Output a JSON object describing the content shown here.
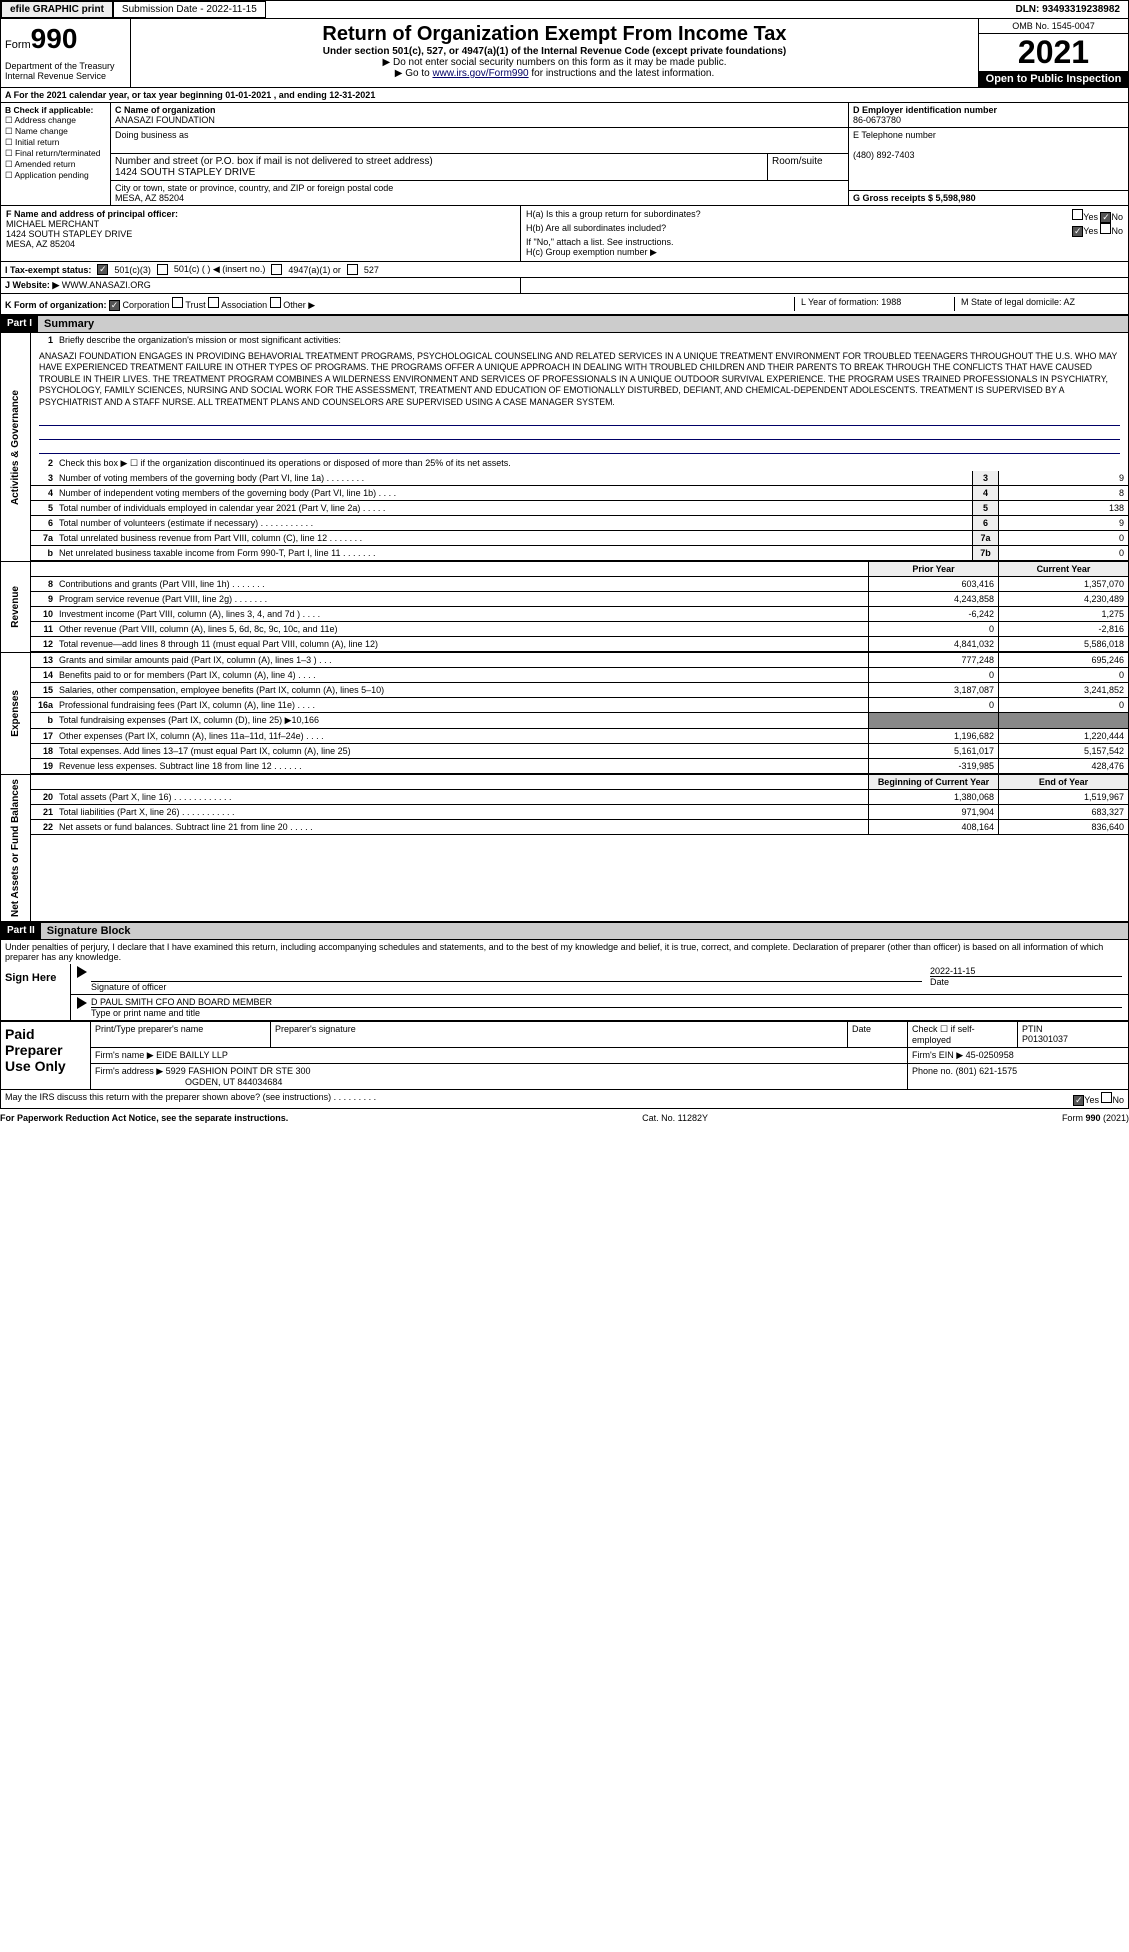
{
  "top": {
    "efile": "efile GRAPHIC print",
    "sub_label": "Submission Date - 2022-11-15",
    "dln": "DLN: 93493319238982"
  },
  "header": {
    "form_word": "Form",
    "form_num": "990",
    "dept": "Department of the Treasury",
    "irs": "Internal Revenue Service",
    "title": "Return of Organization Exempt From Income Tax",
    "subtitle": "Under section 501(c), 527, or 4947(a)(1) of the Internal Revenue Code (except private foundations)",
    "note1": "▶ Do not enter social security numbers on this form as it may be made public.",
    "note2_a": "▶ Go to ",
    "note2_link": "www.irs.gov/Form990",
    "note2_b": " for instructions and the latest information.",
    "omb": "OMB No. 1545-0047",
    "year": "2021",
    "open": "Open to Public Inspection"
  },
  "lineA": "A For the 2021 calendar year, or tax year beginning 01-01-2021   , and ending 12-31-2021",
  "boxB": {
    "hdr": "B Check if applicable:",
    "items": [
      "Address change",
      "Name change",
      "Initial return",
      "Final return/terminated",
      "Amended return",
      "Application pending"
    ]
  },
  "boxC": {
    "label": "C Name of organization",
    "name": "ANASAZI FOUNDATION",
    "dba": "Doing business as",
    "street_label": "Number and street (or P.O. box if mail is not delivered to street address)",
    "street": "1424 SOUTH STAPLEY DRIVE",
    "room_label": "Room/suite",
    "city_label": "City or town, state or province, country, and ZIP or foreign postal code",
    "city": "MESA, AZ  85204"
  },
  "boxD": {
    "label": "D Employer identification number",
    "val": "86-0673780"
  },
  "boxE": {
    "label": "E Telephone number",
    "val": "(480) 892-7403"
  },
  "boxG": {
    "label": "G Gross receipts $ 5,598,980"
  },
  "boxF": {
    "label": "F  Name and address of principal officer:",
    "name": "MICHAEL MERCHANT",
    "addr1": "1424 SOUTH STAPLEY DRIVE",
    "addr2": "MESA, AZ  85204"
  },
  "boxH": {
    "a": "H(a)  Is this a group return for subordinates?",
    "b": "H(b)  Are all subordinates included?",
    "b2": "If \"No,\" attach a list. See instructions.",
    "c": "H(c)  Group exemption number ▶",
    "yes": "Yes",
    "no": "No"
  },
  "rowI": {
    "label": "I   Tax-exempt status:",
    "o1": "501(c)(3)",
    "o2": "501(c) (   ) ◀ (insert no.)",
    "o3": "4947(a)(1) or",
    "o4": "527"
  },
  "rowJ": {
    "label": "J   Website: ▶",
    "val": "WWW.ANASAZI.ORG"
  },
  "rowK": {
    "label": "K Form of organization:",
    "o1": "Corporation",
    "o2": "Trust",
    "o3": "Association",
    "o4": "Other ▶",
    "L": "L Year of formation: 1988",
    "M": "M State of legal domicile: AZ"
  },
  "part1": {
    "hdr": "Part I",
    "title": "Summary",
    "side_gov": "Activities & Governance",
    "side_rev": "Revenue",
    "side_exp": "Expenses",
    "side_net": "Net Assets or Fund Balances",
    "l1": "Briefly describe the organization's mission or most significant activities:",
    "mission": "ANASAZI FOUNDATION ENGAGES IN PROVIDING BEHAVORIAL TREATMENT PROGRAMS, PSYCHOLOGICAL COUNSELING AND RELATED SERVICES IN A UNIQUE TREATMENT ENVIRONMENT FOR TROUBLED TEENAGERS THROUGHOUT THE U.S. WHO MAY HAVE EXPERIENCED TREATMENT FAILURE IN OTHER TYPES OF PROGRAMS. THE PROGRAMS OFFER A UNIQUE APPROACH IN DEALING WITH TROUBLED CHILDREN AND THEIR PARENTS TO BREAK THROUGH THE CONFLICTS THAT HAVE CAUSED TROUBLE IN THEIR LIVES. THE TREATMENT PROGRAM COMBINES A WILDERNESS ENVIRONMENT AND SERVICES OF PROFESSIONALS IN A UNIQUE OUTDOOR SURVIVAL EXPERIENCE. THE PROGRAM USES TRAINED PROFESSIONALS IN PSYCHIATRY, PSYCHOLOGY, FAMILY SCIENCES, NURSING AND SOCIAL WORK FOR THE ASSESSMENT, TREATMENT AND EDUCATION OF EMOTIONALLY DISTURBED, DEFIANT, AND CHEMICAL-DEPENDENT ADOLESCENTS. TREATMENT IS SUPERVISED BY A PSYCHIATRIST AND A STAFF NURSE. ALL TREATMENT PLANS AND COUNSELORS ARE SUPERVISED USING A CASE MANAGER SYSTEM.",
    "l2": "Check this box ▶ ☐ if the organization discontinued its operations or disposed of more than 25% of its net assets.",
    "gov_lines": [
      {
        "n": "3",
        "d": "Number of voting members of the governing body (Part VI, line 1a)  .    .    .    .    .    .    .    .",
        "box": "3",
        "v": "9"
      },
      {
        "n": "4",
        "d": "Number of independent voting members of the governing body (Part VI, line 1b)    .    .    .    .",
        "box": "4",
        "v": "8"
      },
      {
        "n": "5",
        "d": "Total number of individuals employed in calendar year 2021 (Part V, line 2a)    .    .    .    .    .",
        "box": "5",
        "v": "138"
      },
      {
        "n": "6",
        "d": "Total number of volunteers (estimate if necessary)   .    .    .    .    .    .    .    .    .    .    .",
        "box": "6",
        "v": "9"
      },
      {
        "n": "7a",
        "d": "Total unrelated business revenue from Part VIII, column (C), line 12   .    .    .    .    .    .    .",
        "box": "7a",
        "v": "0"
      },
      {
        "n": "b",
        "d": "Net unrelated business taxable income from Form 990-T, Part I, line 11  .    .    .    .    .    .    .",
        "box": "7b",
        "v": "0"
      }
    ],
    "col_prior": "Prior Year",
    "col_curr": "Current Year",
    "rev_lines": [
      {
        "n": "8",
        "d": "Contributions and grants (Part VIII, line 1h)   .    .    .    .    .    .    .",
        "p": "603,416",
        "c": "1,357,070"
      },
      {
        "n": "9",
        "d": "Program service revenue (Part VIII, line 2g)   .    .    .    .    .    .    .",
        "p": "4,243,858",
        "c": "4,230,489"
      },
      {
        "n": "10",
        "d": "Investment income (Part VIII, column (A), lines 3, 4, and 7d )   .    .    .    .",
        "p": "-6,242",
        "c": "1,275"
      },
      {
        "n": "11",
        "d": "Other revenue (Part VIII, column (A), lines 5, 6d, 8c, 9c, 10c, and 11e)",
        "p": "0",
        "c": "-2,816"
      },
      {
        "n": "12",
        "d": "Total revenue—add lines 8 through 11 (must equal Part VIII, column (A), line 12)",
        "p": "4,841,032",
        "c": "5,586,018"
      }
    ],
    "exp_lines": [
      {
        "n": "13",
        "d": "Grants and similar amounts paid (Part IX, column (A), lines 1–3 )  .    .    .",
        "p": "777,248",
        "c": "695,246"
      },
      {
        "n": "14",
        "d": "Benefits paid to or for members (Part IX, column (A), line 4)  .    .    .    .",
        "p": "0",
        "c": "0"
      },
      {
        "n": "15",
        "d": "Salaries, other compensation, employee benefits (Part IX, column (A), lines 5–10)",
        "p": "3,187,087",
        "c": "3,241,852"
      },
      {
        "n": "16a",
        "d": "Professional fundraising fees (Part IX, column (A), line 11e)   .    .    .    .",
        "p": "0",
        "c": "0"
      },
      {
        "n": "b",
        "d": "Total fundraising expenses (Part IX, column (D), line 25) ▶10,166",
        "p": "",
        "c": "",
        "grey": true
      },
      {
        "n": "17",
        "d": "Other expenses (Part IX, column (A), lines 11a–11d, 11f–24e)   .     .    .    .",
        "p": "1,196,682",
        "c": "1,220,444"
      },
      {
        "n": "18",
        "d": "Total expenses. Add lines 13–17 (must equal Part IX, column (A), line 25)",
        "p": "5,161,017",
        "c": "5,157,542"
      },
      {
        "n": "19",
        "d": "Revenue less expenses. Subtract line 18 from line 12   .    .    .    .    .    .",
        "p": "-319,985",
        "c": "428,476"
      }
    ],
    "col_begin": "Beginning of Current Year",
    "col_end": "End of Year",
    "net_lines": [
      {
        "n": "20",
        "d": "Total assets (Part X, line 16)  .    .    .    .    .    .    .    .    .    .    .    .",
        "p": "1,380,068",
        "c": "1,519,967"
      },
      {
        "n": "21",
        "d": "Total liabilities (Part X, line 26)   .    .    .    .    .    .    .    .    .    .    .",
        "p": "971,904",
        "c": "683,327"
      },
      {
        "n": "22",
        "d": "Net assets or fund balances. Subtract line 21 from line 20  .    .    .    .    .",
        "p": "408,164",
        "c": "836,640"
      }
    ]
  },
  "part2": {
    "hdr": "Part II",
    "title": "Signature Block",
    "decl": "Under penalties of perjury, I declare that I have examined this return, including accompanying schedules and statements, and to the best of my knowledge and belief, it is true, correct, and complete. Declaration of preparer (other than officer) is based on all information of which preparer has any knowledge.",
    "sign_here": "Sign Here",
    "sig_officer": "Signature of officer",
    "date_label": "Date",
    "date_val": "2022-11-15",
    "name_title": "D PAUL SMITH  CFO AND BOARD MEMBER",
    "type_label": "Type or print name and title"
  },
  "paid": {
    "label": "Paid Preparer Use Only",
    "h1": "Print/Type preparer's name",
    "h2": "Preparer's signature",
    "h3": "Date",
    "h4": "Check ☐ if self-employed",
    "h5": "PTIN",
    "ptin": "P01301037",
    "firm_name_l": "Firm's name    ▶",
    "firm_name": "EIDE BAILLY LLP",
    "firm_ein_l": "Firm's EIN ▶",
    "firm_ein": "45-0250958",
    "firm_addr_l": "Firm's address ▶",
    "firm_addr1": "5929 FASHION POINT DR STE 300",
    "firm_addr2": "OGDEN, UT  844034684",
    "phone_l": "Phone no.",
    "phone": "(801) 621-1575"
  },
  "discuss": "May the IRS discuss this return with the preparer shown above? (see instructions)    .    .    .    .    .    .    .    .    .",
  "footer": {
    "f1": "For Paperwork Reduction Act Notice, see the separate instructions.",
    "f2": "Cat. No. 11282Y",
    "f3": "Form 990 (2021)"
  }
}
